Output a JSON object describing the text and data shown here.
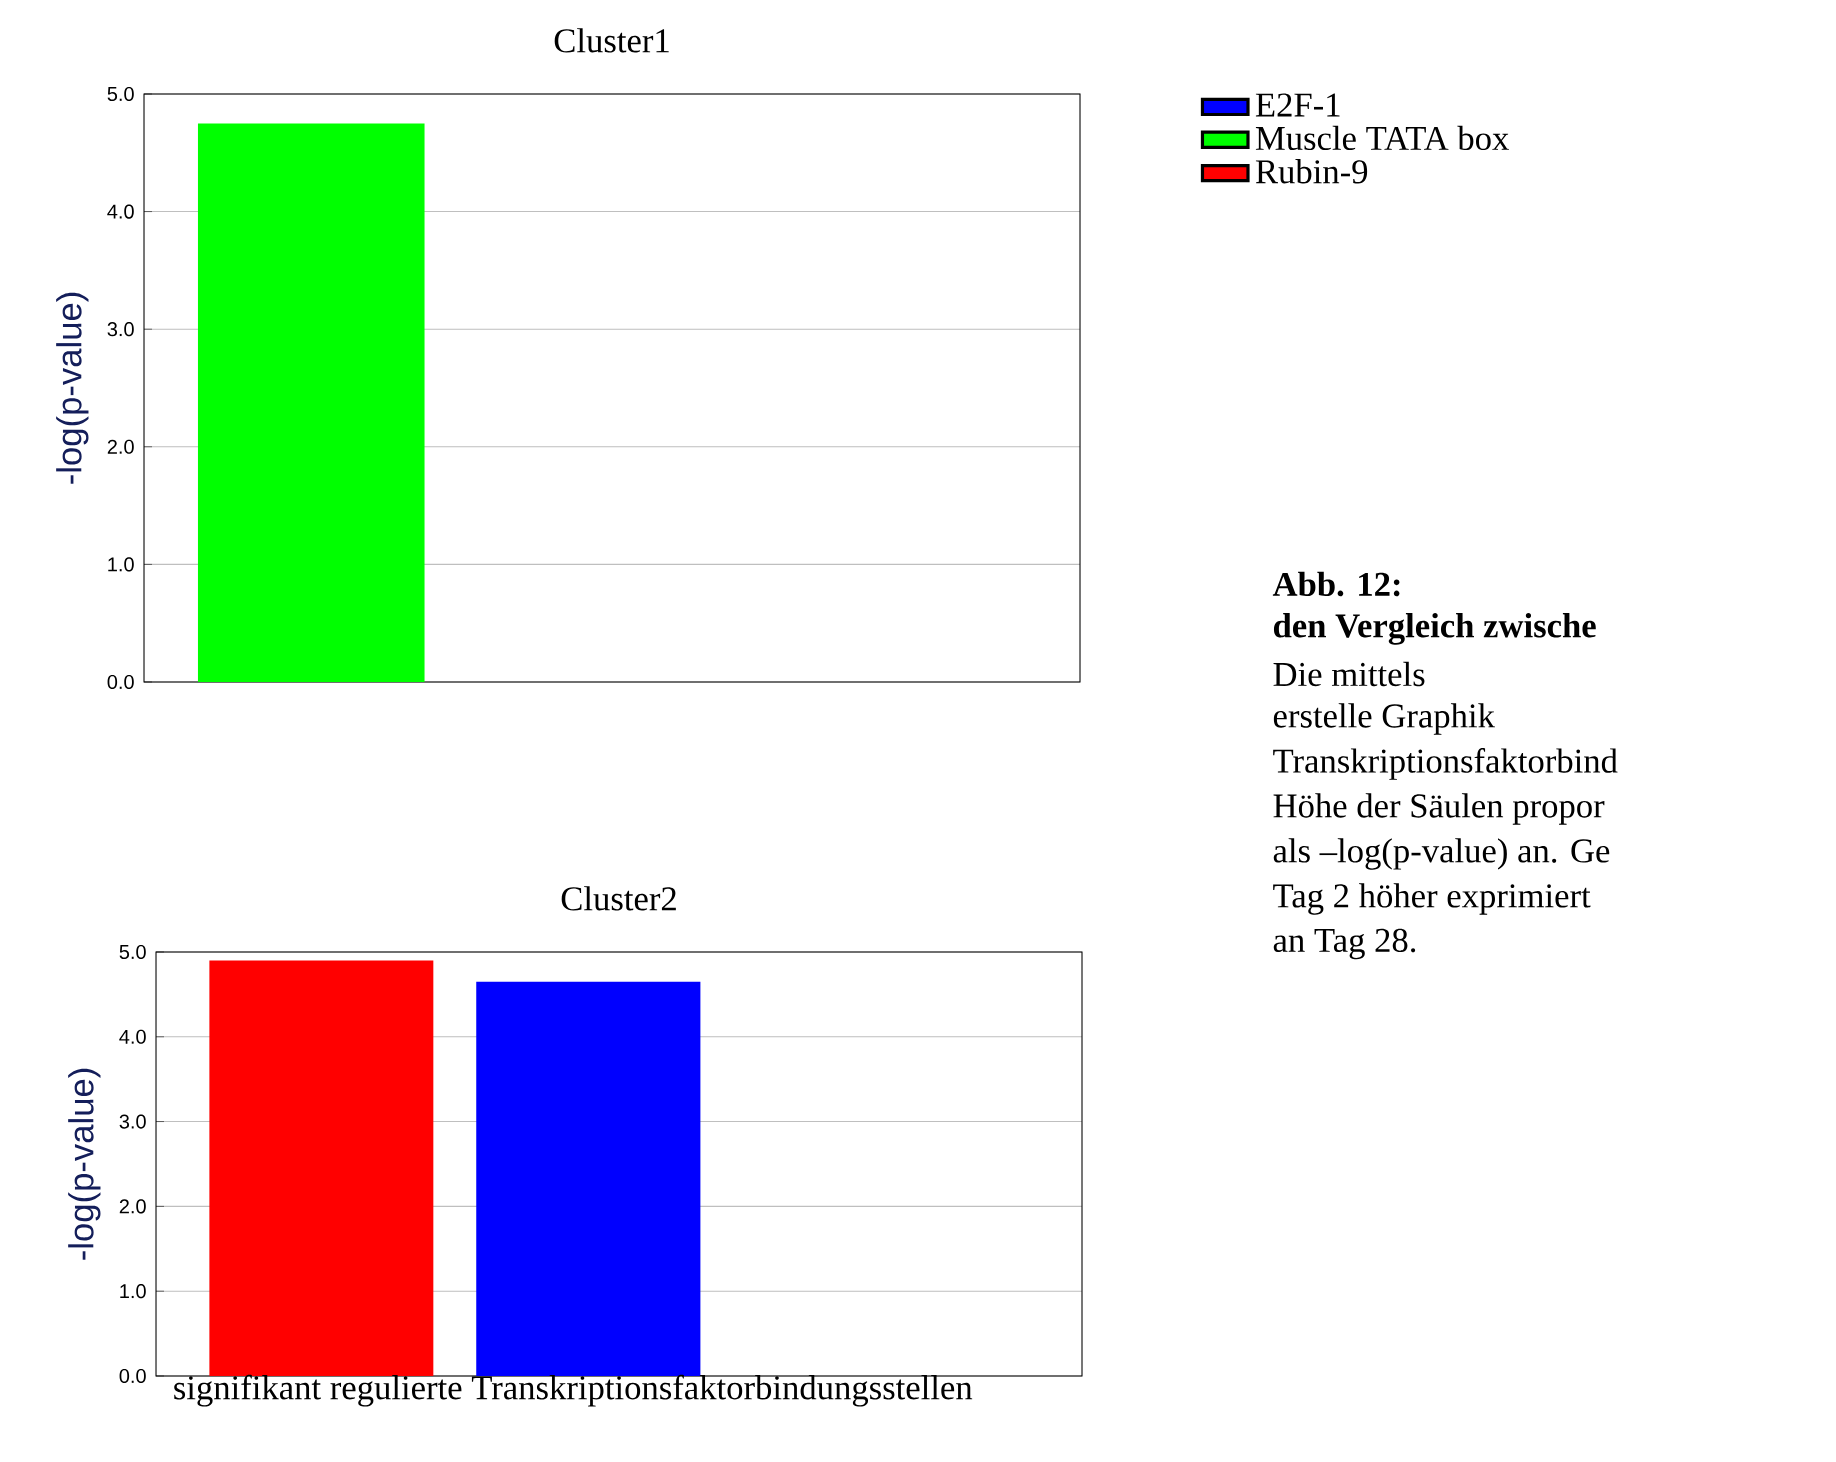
{
  "chart_data": [
    {
      "type": "bar",
      "title": "Cluster1",
      "ylabel": "-log(p-value)",
      "categories": [
        null,
        null,
        null
      ],
      "series": [
        {
          "name": "E2F-1",
          "color": "#0000ff",
          "values": [
            null,
            null,
            null
          ]
        },
        {
          "name": "Muscle TATA box",
          "color": "#00ff00",
          "values": [
            4.75,
            null,
            null
          ]
        },
        {
          "name": "Rubin-9",
          "color": "#ff0000",
          "values": [
            null,
            null,
            null
          ]
        }
      ],
      "ylim": [
        0,
        5
      ],
      "yticks": [
        {
          "value": 0,
          "label": "0.0"
        },
        {
          "value": 1,
          "label": "1.0"
        },
        {
          "value": 2,
          "label": "2.0"
        },
        {
          "value": 3,
          "label": "3.0"
        },
        {
          "value": 4,
          "label": "4.0"
        },
        {
          "value": 5,
          "label": "5.0"
        }
      ],
      "grid": "y",
      "legend": "right",
      "annotations": [
        "**Abb. 12:**",
        "**den Vergleich zwische**",
        "Die mittels",
        "erstelle Graphik",
        "Transkriptionsfaktorbind",
        "Höhe der Säulen propor",
        "als –log(p-value) an. Ge",
        "Tag 2 höher exprimiert",
        "an Tag 28."
      ]
    },
    {
      "type": "bar",
      "title": "Cluster2",
      "ylabel": "-log(p-value)",
      "xlabel": "signifikant regulierte Transkriptionsfaktorbindungsstellen",
      "categories": [
        null,
        null,
        null
      ],
      "series": [
        {
          "color": "#ff0000",
          "values": [
            4.9,
            null,
            null
          ]
        },
        {
          "color": "#0000ff",
          "values": [
            null,
            4.65,
            null
          ]
        }
      ],
      "ylim": [
        0,
        5
      ],
      "yticks": [
        {
          "value": 0,
          "label": "0.0"
        },
        {
          "value": 1,
          "label": "1.0"
        },
        {
          "value": 2,
          "label": "2.0"
        },
        {
          "value": 3,
          "label": "3.0"
        },
        {
          "value": 4,
          "label": "4.0"
        },
        {
          "value": 5,
          "label": "5.0"
        }
      ],
      "grid": "y"
    }
  ]
}
